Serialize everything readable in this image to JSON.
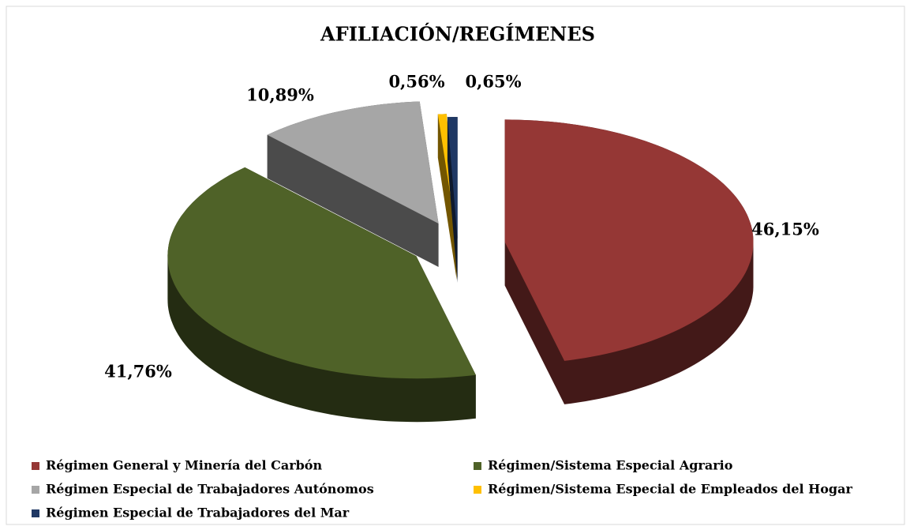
{
  "chart_data": {
    "type": "pie",
    "title": "AFILIACIÓN/REGÍMENES",
    "categories": [
      "Régimen General y Minería del Carbón",
      "Régimen/Sistema Especial Agrario",
      "Régimen Especial de Trabajadores Autónomos",
      "Régimen/Sistema Especial de Empleados del Hogar",
      "Régimen Especial de Trabajadores del Mar"
    ],
    "values": [
      46.15,
      41.76,
      10.89,
      0.56,
      0.65
    ],
    "value_labels": [
      "46,15%",
      "41,76%",
      "10,89%",
      "0,56%",
      "0,65%"
    ],
    "colors": [
      "#953735",
      "#4f6228",
      "#a6a6a6",
      "#ffc000",
      "#1f3864"
    ],
    "legend": "bottom"
  }
}
